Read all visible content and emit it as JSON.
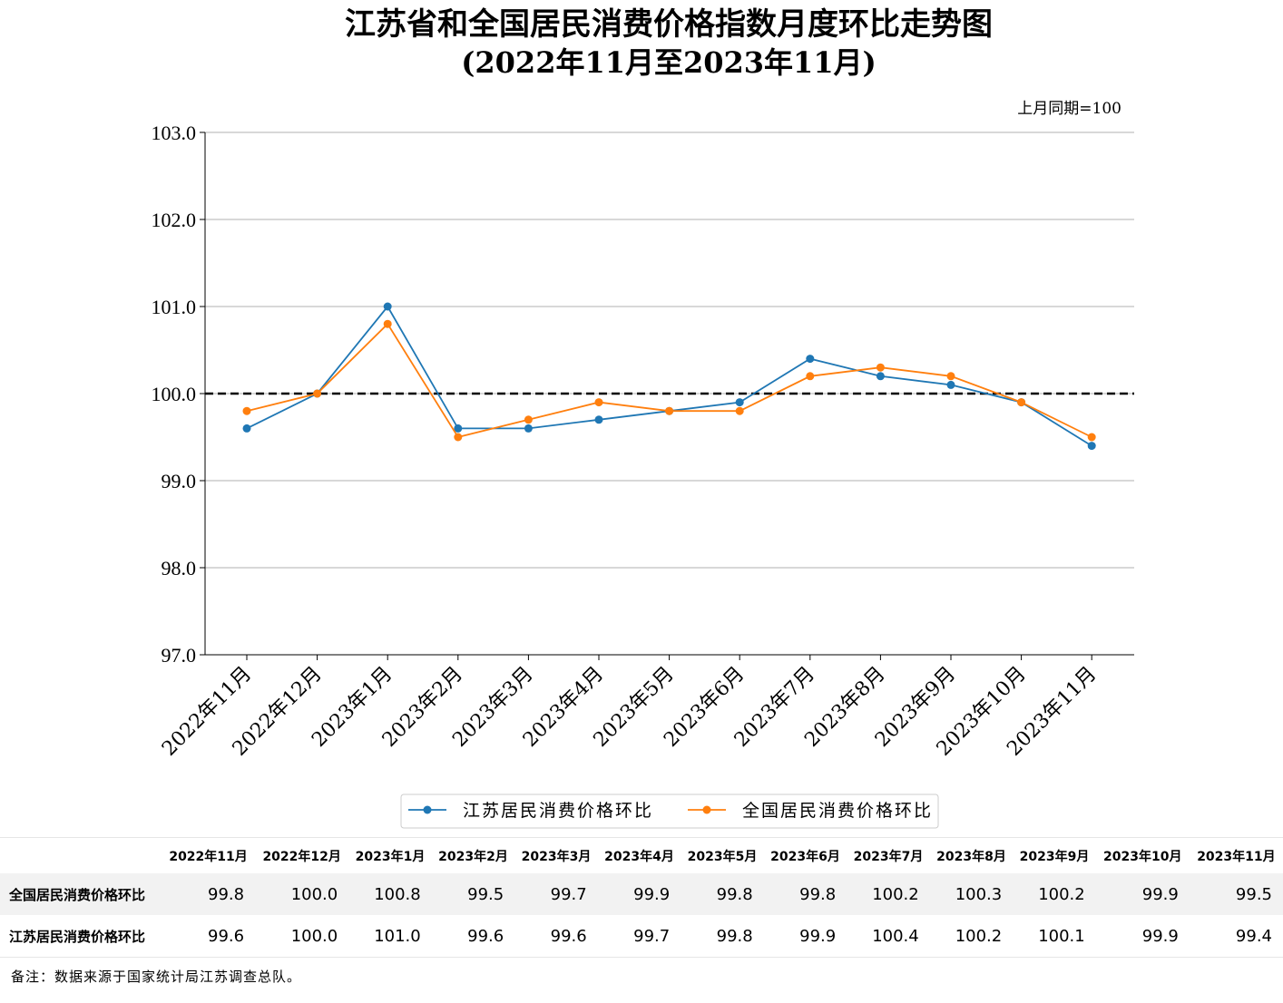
{
  "chart_data": {
    "type": "line",
    "title": "江苏省和全国居民消费价格指数月度环比走势图",
    "subtitle": "(2022年11月至2023年11月)",
    "unit_note": "上月同期=100",
    "categories": [
      "2022年11月",
      "2022年12月",
      "2023年1月",
      "2023年2月",
      "2023年3月",
      "2023年4月",
      "2023年5月",
      "2023年6月",
      "2023年7月",
      "2023年8月",
      "2023年9月",
      "2023年10月",
      "2023年11月"
    ],
    "series": [
      {
        "name": "江苏居民消费价格环比",
        "color": "#1f77b4",
        "values": [
          99.6,
          100.0,
          101.0,
          99.6,
          99.6,
          99.7,
          99.8,
          99.9,
          100.4,
          100.2,
          100.1,
          99.9,
          99.4
        ]
      },
      {
        "name": "全国居民消费价格环比",
        "color": "#ff7f0e",
        "values": [
          99.8,
          100.0,
          100.8,
          99.5,
          99.7,
          99.9,
          99.8,
          99.8,
          100.2,
          100.3,
          100.2,
          99.9,
          99.5
        ]
      }
    ],
    "ylim": [
      97.0,
      103.0
    ],
    "yticks": [
      "97.0",
      "98.0",
      "99.0",
      "100.0",
      "101.0",
      "102.0",
      "103.0"
    ],
    "reference_line": 100.0,
    "grid": "horizontal",
    "legend_position": "bottom-center"
  },
  "table": {
    "headers": [
      "2022年11月",
      "2022年12月",
      "2023年1月",
      "2023年2月",
      "2023年3月",
      "2023年4月",
      "2023年5月",
      "2023年6月",
      "2023年7月",
      "2023年8月",
      "2023年9月",
      "2023年10月",
      "2023年11月"
    ],
    "rows": [
      {
        "label": "全国居民消费价格环比",
        "values": [
          "99.8",
          "100.0",
          "100.8",
          "99.5",
          "99.7",
          "99.9",
          "99.8",
          "99.8",
          "100.2",
          "100.3",
          "100.2",
          "99.9",
          "99.5"
        ]
      },
      {
        "label": "江苏居民消费价格环比",
        "values": [
          "99.6",
          "100.0",
          "101.0",
          "99.6",
          "99.6",
          "99.7",
          "99.8",
          "99.9",
          "100.4",
          "100.2",
          "100.1",
          "99.9",
          "99.4"
        ]
      }
    ]
  },
  "footnote": "备注：数据来源于国家统计局江苏调查总队。"
}
